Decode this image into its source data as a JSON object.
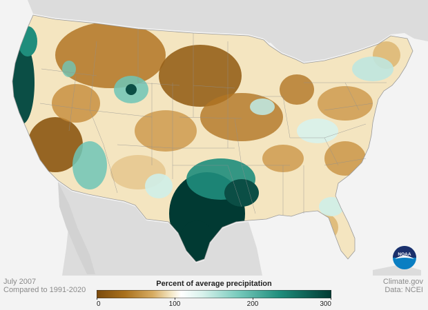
{
  "map": {
    "period": "July 2007",
    "baseline": "Compared to 1991-2020",
    "source": "Climate.gov",
    "data_source": "Data: NCEI"
  },
  "legend": {
    "title": "Percent of average precipitation",
    "ticks": [
      "0",
      "100",
      "200",
      "300"
    ],
    "colors": [
      "#7a4a0c",
      "#b97a22",
      "#dbb36b",
      "#f7efd8",
      "#ffffff",
      "#cfeee8",
      "#6fc5b6",
      "#1f8d7c",
      "#0b4e45",
      "#013a33"
    ]
  },
  "logo": {
    "label": "NOAA"
  },
  "colors": {
    "land_bg": "#dcdcdc",
    "ocean_bg": "#f3f3f3",
    "dry": "#a86a1a",
    "wet": "#0b4e45"
  }
}
